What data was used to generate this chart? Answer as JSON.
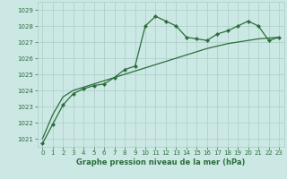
{
  "x": [
    0,
    1,
    2,
    3,
    4,
    5,
    6,
    7,
    8,
    9,
    10,
    11,
    12,
    13,
    14,
    15,
    16,
    17,
    18,
    19,
    20,
    21,
    22,
    23
  ],
  "y_main": [
    1020.7,
    1021.9,
    1023.1,
    1023.8,
    1024.1,
    1024.3,
    1024.4,
    1024.8,
    1025.3,
    1025.5,
    1028.0,
    1028.6,
    1028.3,
    1028.0,
    1027.3,
    1027.2,
    1027.1,
    1027.5,
    1027.7,
    1028.0,
    1028.3,
    1028.0,
    1027.1,
    1027.3
  ],
  "y_trend": [
    1021.0,
    1022.5,
    1023.6,
    1024.0,
    1024.2,
    1024.4,
    1024.6,
    1024.8,
    1025.0,
    1025.2,
    1025.4,
    1025.6,
    1025.8,
    1026.0,
    1026.2,
    1026.4,
    1026.6,
    1026.75,
    1026.9,
    1027.0,
    1027.1,
    1027.2,
    1027.25,
    1027.3
  ],
  "bg_color": "#cce8e4",
  "grid_color": "#aaccc8",
  "line_color": "#2a6e3a",
  "marker": "D",
  "marker_size": 2.2,
  "ylim": [
    1020.5,
    1029.5
  ],
  "yticks": [
    1021,
    1022,
    1023,
    1024,
    1025,
    1026,
    1027,
    1028,
    1029
  ],
  "xlim": [
    -0.5,
    23.5
  ],
  "xticks": [
    0,
    1,
    2,
    3,
    4,
    5,
    6,
    7,
    8,
    9,
    10,
    11,
    12,
    13,
    14,
    15,
    16,
    17,
    18,
    19,
    20,
    21,
    22,
    23
  ],
  "xlabel": "Graphe pression niveau de la mer (hPa)",
  "tick_fontsize": 5.0,
  "xlabel_fontsize": 6.0
}
